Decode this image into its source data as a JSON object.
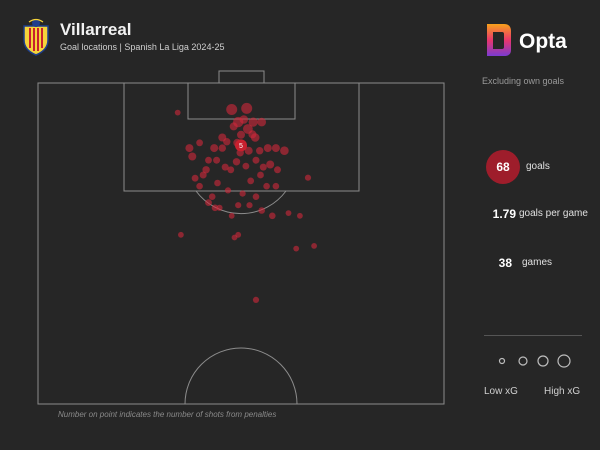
{
  "header": {
    "team": "Villarreal",
    "subtitle": "Goal locations | Spanish La Liga 2024-25",
    "brand": "Opta",
    "note": "Excluding own goals"
  },
  "colors": {
    "goal": "#d0283a",
    "badge": "#9e1d2b",
    "line": "#8c8c8c"
  },
  "stats": {
    "goals_value": "68",
    "goals_label": "goals",
    "gpg_value": "1.79",
    "gpg_label": "goals per game",
    "games_value": "38",
    "games_label": "games"
  },
  "legend": {
    "low": "Low xG",
    "high": "High xG"
  },
  "footnote": "Number on point indicates the number of shots from penalties",
  "chart_data": {
    "type": "scatter",
    "penalty_marker": {
      "x": 50,
      "y": 11.8,
      "count": "5"
    },
    "goals": [
      {
        "x": 47.7,
        "y": 5.0,
        "xg": 0.55
      },
      {
        "x": 51.4,
        "y": 4.8,
        "xg": 0.55
      },
      {
        "x": 49.3,
        "y": 7.4,
        "xg": 0.5
      },
      {
        "x": 53.0,
        "y": 7.4,
        "xg": 0.4
      },
      {
        "x": 51.7,
        "y": 8.7,
        "xg": 0.45
      },
      {
        "x": 50.7,
        "y": 6.9,
        "xg": 0.35
      },
      {
        "x": 55.1,
        "y": 7.4,
        "xg": 0.35
      },
      {
        "x": 50.0,
        "y": 9.8,
        "xg": 0.3
      },
      {
        "x": 48.2,
        "y": 8.2,
        "xg": 0.3
      },
      {
        "x": 53.5,
        "y": 10.3,
        "xg": 0.35
      },
      {
        "x": 45.4,
        "y": 10.3,
        "xg": 0.3
      },
      {
        "x": 49.1,
        "y": 11.3,
        "xg": 0.3
      },
      {
        "x": 43.4,
        "y": 12.3,
        "xg": 0.3
      },
      {
        "x": 45.4,
        "y": 12.3,
        "xg": 0.25
      },
      {
        "x": 46.5,
        "y": 11.1,
        "xg": 0.25
      },
      {
        "x": 49.8,
        "y": 13.2,
        "xg": 0.25
      },
      {
        "x": 51.9,
        "y": 12.8,
        "xg": 0.3
      },
      {
        "x": 54.6,
        "y": 12.8,
        "xg": 0.25
      },
      {
        "x": 56.6,
        "y": 12.3,
        "xg": 0.3
      },
      {
        "x": 58.6,
        "y": 12.3,
        "xg": 0.3
      },
      {
        "x": 60.7,
        "y": 12.8,
        "xg": 0.35
      },
      {
        "x": 37.3,
        "y": 12.3,
        "xg": 0.3
      },
      {
        "x": 38.0,
        "y": 13.9,
        "xg": 0.3
      },
      {
        "x": 39.8,
        "y": 11.3,
        "xg": 0.2
      },
      {
        "x": 42.0,
        "y": 14.6,
        "xg": 0.2
      },
      {
        "x": 44.0,
        "y": 14.6,
        "xg": 0.22
      },
      {
        "x": 46.1,
        "y": 15.9,
        "xg": 0.22
      },
      {
        "x": 47.5,
        "y": 16.4,
        "xg": 0.2
      },
      {
        "x": 53.7,
        "y": 14.6,
        "xg": 0.22
      },
      {
        "x": 55.5,
        "y": 15.9,
        "xg": 0.22
      },
      {
        "x": 57.2,
        "y": 15.4,
        "xg": 0.3
      },
      {
        "x": 59.0,
        "y": 16.4,
        "xg": 0.22
      },
      {
        "x": 54.8,
        "y": 17.4,
        "xg": 0.2
      },
      {
        "x": 41.4,
        "y": 16.4,
        "xg": 0.25
      },
      {
        "x": 40.7,
        "y": 17.4,
        "xg": 0.22
      },
      {
        "x": 38.7,
        "y": 18.0,
        "xg": 0.2
      },
      {
        "x": 39.8,
        "y": 19.5,
        "xg": 0.18
      },
      {
        "x": 52.4,
        "y": 18.5,
        "xg": 0.2
      },
      {
        "x": 56.3,
        "y": 19.5,
        "xg": 0.18
      },
      {
        "x": 58.6,
        "y": 19.5,
        "xg": 0.18
      },
      {
        "x": 42.9,
        "y": 21.5,
        "xg": 0.18
      },
      {
        "x": 42.0,
        "y": 22.6,
        "xg": 0.2
      },
      {
        "x": 43.6,
        "y": 23.6,
        "xg": 0.18
      },
      {
        "x": 44.7,
        "y": 23.6,
        "xg": 0.15
      },
      {
        "x": 49.3,
        "y": 23.1,
        "xg": 0.15
      },
      {
        "x": 52.1,
        "y": 23.1,
        "xg": 0.15
      },
      {
        "x": 53.7,
        "y": 21.5,
        "xg": 0.18
      },
      {
        "x": 55.1,
        "y": 24.1,
        "xg": 0.18
      },
      {
        "x": 57.7,
        "y": 25.1,
        "xg": 0.18
      },
      {
        "x": 61.7,
        "y": 24.6,
        "xg": 0.12
      },
      {
        "x": 64.5,
        "y": 25.1,
        "xg": 0.12
      },
      {
        "x": 66.5,
        "y": 17.9,
        "xg": 0.15
      },
      {
        "x": 34.4,
        "y": 5.6,
        "xg": 0.12
      },
      {
        "x": 47.7,
        "y": 25.1,
        "xg": 0.12
      },
      {
        "x": 35.2,
        "y": 28.7,
        "xg": 0.12
      },
      {
        "x": 48.4,
        "y": 29.2,
        "xg": 0.12
      },
      {
        "x": 49.3,
        "y": 28.7,
        "xg": 0.12
      },
      {
        "x": 63.6,
        "y": 31.3,
        "xg": 0.12
      },
      {
        "x": 68.0,
        "y": 30.8,
        "xg": 0.12
      },
      {
        "x": 53.7,
        "y": 41.0,
        "xg": 0.15
      },
      {
        "x": 50.5,
        "y": 12.0,
        "xg": 0.3
      },
      {
        "x": 48.9,
        "y": 14.9,
        "xg": 0.25
      },
      {
        "x": 51.2,
        "y": 15.7,
        "xg": 0.2
      },
      {
        "x": 44.2,
        "y": 18.9,
        "xg": 0.18
      },
      {
        "x": 46.8,
        "y": 20.3,
        "xg": 0.15
      },
      {
        "x": 50.4,
        "y": 20.9,
        "xg": 0.15
      },
      {
        "x": 52.8,
        "y": 9.7,
        "xg": 0.3
      }
    ]
  }
}
